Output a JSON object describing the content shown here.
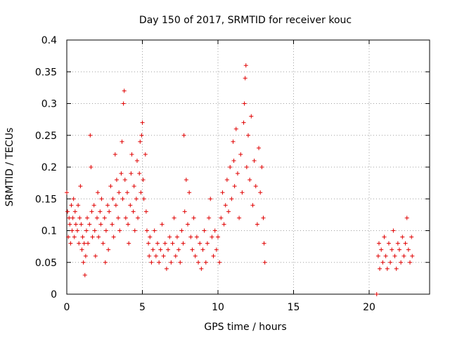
{
  "chart_data": {
    "type": "scatter",
    "title": "Day 150 of 2017, SRMTID for receiver kouc",
    "xlabel": "GPS time / hours",
    "ylabel": "SRMTID / TECUs",
    "xlim": [
      0,
      24
    ],
    "ylim": [
      0,
      0.4
    ],
    "xticks": [
      0,
      5,
      10,
      15,
      20
    ],
    "xtick_labels": [
      "0",
      "5",
      "10",
      "15",
      "20"
    ],
    "yticks": [
      0,
      0.05,
      0.1,
      0.15,
      0.2,
      0.25,
      0.3,
      0.35,
      0.4
    ],
    "ytick_labels": [
      "0",
      "0.05",
      "0.1",
      "0.15",
      "0.2",
      "0.25",
      "0.3",
      "0.35",
      "0.4"
    ],
    "grid": true,
    "marker": "plus",
    "color": "#e00000",
    "series": [
      {
        "name": "SRMTID",
        "points": [
          [
            0.0,
            0.16
          ],
          [
            0.05,
            0.13
          ],
          [
            0.1,
            0.09
          ],
          [
            0.15,
            0.12
          ],
          [
            0.2,
            0.11
          ],
          [
            0.25,
            0.08
          ],
          [
            0.3,
            0.14
          ],
          [
            0.35,
            0.1
          ],
          [
            0.4,
            0.12
          ],
          [
            0.45,
            0.15
          ],
          [
            0.5,
            0.09
          ],
          [
            0.55,
            0.13
          ],
          [
            0.6,
            0.11
          ],
          [
            0.7,
            0.1
          ],
          [
            0.75,
            0.14
          ],
          [
            0.8,
            0.08
          ],
          [
            0.85,
            0.12
          ],
          [
            0.9,
            0.17
          ],
          [
            0.95,
            0.11
          ],
          [
            1.0,
            0.07
          ],
          [
            1.05,
            0.09
          ],
          [
            1.1,
            0.05
          ],
          [
            1.15,
            0.08
          ],
          [
            1.2,
            0.03
          ],
          [
            1.25,
            0.06
          ],
          [
            1.3,
            0.1
          ],
          [
            1.35,
            0.12
          ],
          [
            1.4,
            0.08
          ],
          [
            1.5,
            0.11
          ],
          [
            1.55,
            0.25
          ],
          [
            1.6,
            0.2
          ],
          [
            1.65,
            0.13
          ],
          [
            1.7,
            0.09
          ],
          [
            1.8,
            0.14
          ],
          [
            1.85,
            0.1
          ],
          [
            1.9,
            0.06
          ],
          [
            2.0,
            0.12
          ],
          [
            2.05,
            0.16
          ],
          [
            2.1,
            0.09
          ],
          [
            2.2,
            0.13
          ],
          [
            2.25,
            0.11
          ],
          [
            2.3,
            0.15
          ],
          [
            2.4,
            0.08
          ],
          [
            2.5,
            0.12
          ],
          [
            2.55,
            0.05
          ],
          [
            2.6,
            0.1
          ],
          [
            2.7,
            0.14
          ],
          [
            2.75,
            0.07
          ],
          [
            2.8,
            0.13
          ],
          [
            2.9,
            0.17
          ],
          [
            3.0,
            0.11
          ],
          [
            3.05,
            0.15
          ],
          [
            3.1,
            0.09
          ],
          [
            3.2,
            0.22
          ],
          [
            3.25,
            0.14
          ],
          [
            3.3,
            0.18
          ],
          [
            3.4,
            0.12
          ],
          [
            3.45,
            0.16
          ],
          [
            3.5,
            0.1
          ],
          [
            3.6,
            0.19
          ],
          [
            3.65,
            0.24
          ],
          [
            3.7,
            0.15
          ],
          [
            3.75,
            0.3
          ],
          [
            3.8,
            0.32
          ],
          [
            3.85,
            0.18
          ],
          [
            3.9,
            0.12
          ],
          [
            4.0,
            0.16
          ],
          [
            4.05,
            0.11
          ],
          [
            4.1,
            0.08
          ],
          [
            4.2,
            0.14
          ],
          [
            4.25,
            0.19
          ],
          [
            4.3,
            0.22
          ],
          [
            4.4,
            0.13
          ],
          [
            4.45,
            0.17
          ],
          [
            4.5,
            0.1
          ],
          [
            4.6,
            0.15
          ],
          [
            4.65,
            0.21
          ],
          [
            4.7,
            0.12
          ],
          [
            4.8,
            0.19
          ],
          [
            4.85,
            0.24
          ],
          [
            4.9,
            0.16
          ],
          [
            4.95,
            0.25
          ],
          [
            5.0,
            0.27
          ],
          [
            5.05,
            0.18
          ],
          [
            5.1,
            0.15
          ],
          [
            5.2,
            0.22
          ],
          [
            5.25,
            0.13
          ],
          [
            5.3,
            0.1
          ],
          [
            5.4,
            0.08
          ],
          [
            5.45,
            0.06
          ],
          [
            5.5,
            0.09
          ],
          [
            5.6,
            0.05
          ],
          [
            5.7,
            0.07
          ],
          [
            5.8,
            0.1
          ],
          [
            5.9,
            0.06
          ],
          [
            6.0,
            0.08
          ],
          [
            6.1,
            0.05
          ],
          [
            6.2,
            0.07
          ],
          [
            6.3,
            0.11
          ],
          [
            6.4,
            0.06
          ],
          [
            6.5,
            0.08
          ],
          [
            6.6,
            0.04
          ],
          [
            6.7,
            0.07
          ],
          [
            6.8,
            0.09
          ],
          [
            6.9,
            0.05
          ],
          [
            7.0,
            0.08
          ],
          [
            7.1,
            0.12
          ],
          [
            7.2,
            0.06
          ],
          [
            7.3,
            0.09
          ],
          [
            7.4,
            0.07
          ],
          [
            7.5,
            0.05
          ],
          [
            7.6,
            0.1
          ],
          [
            7.7,
            0.08
          ],
          [
            7.75,
            0.25
          ],
          [
            7.8,
            0.13
          ],
          [
            7.9,
            0.18
          ],
          [
            8.0,
            0.11
          ],
          [
            8.1,
            0.16
          ],
          [
            8.2,
            0.09
          ],
          [
            8.3,
            0.07
          ],
          [
            8.4,
            0.12
          ],
          [
            8.5,
            0.06
          ],
          [
            8.6,
            0.09
          ],
          [
            8.7,
            0.05
          ],
          [
            8.8,
            0.08
          ],
          [
            8.9,
            0.04
          ],
          [
            9.0,
            0.07
          ],
          [
            9.1,
            0.1
          ],
          [
            9.2,
            0.05
          ],
          [
            9.3,
            0.08
          ],
          [
            9.4,
            0.12
          ],
          [
            9.5,
            0.15
          ],
          [
            9.6,
            0.09
          ],
          [
            9.7,
            0.06
          ],
          [
            9.8,
            0.1
          ],
          [
            9.9,
            0.07
          ],
          [
            10.0,
            0.09
          ],
          [
            10.1,
            0.05
          ],
          [
            10.2,
            0.12
          ],
          [
            10.3,
            0.16
          ],
          [
            10.4,
            0.11
          ],
          [
            10.5,
            0.14
          ],
          [
            10.6,
            0.18
          ],
          [
            10.7,
            0.13
          ],
          [
            10.8,
            0.2
          ],
          [
            10.9,
            0.15
          ],
          [
            11.0,
            0.24
          ],
          [
            11.05,
            0.21
          ],
          [
            11.1,
            0.17
          ],
          [
            11.2,
            0.26
          ],
          [
            11.3,
            0.19
          ],
          [
            11.4,
            0.12
          ],
          [
            11.5,
            0.22
          ],
          [
            11.6,
            0.16
          ],
          [
            11.7,
            0.27
          ],
          [
            11.75,
            0.3
          ],
          [
            11.8,
            0.34
          ],
          [
            11.85,
            0.36
          ],
          [
            11.9,
            0.2
          ],
          [
            12.0,
            0.25
          ],
          [
            12.1,
            0.18
          ],
          [
            12.2,
            0.28
          ],
          [
            12.3,
            0.14
          ],
          [
            12.4,
            0.21
          ],
          [
            12.5,
            0.17
          ],
          [
            12.6,
            0.11
          ],
          [
            12.7,
            0.23
          ],
          [
            12.8,
            0.16
          ],
          [
            12.9,
            0.2
          ],
          [
            13.0,
            0.12
          ],
          [
            13.05,
            0.08
          ],
          [
            13.1,
            0.05
          ],
          [
            20.5,
            0.0
          ],
          [
            20.6,
            0.06
          ],
          [
            20.65,
            0.08
          ],
          [
            20.7,
            0.04
          ],
          [
            20.8,
            0.07
          ],
          [
            20.9,
            0.05
          ],
          [
            21.0,
            0.09
          ],
          [
            21.1,
            0.06
          ],
          [
            21.2,
            0.04
          ],
          [
            21.3,
            0.08
          ],
          [
            21.4,
            0.05
          ],
          [
            21.5,
            0.07
          ],
          [
            21.6,
            0.1
          ],
          [
            21.7,
            0.06
          ],
          [
            21.8,
            0.04
          ],
          [
            21.9,
            0.08
          ],
          [
            22.0,
            0.07
          ],
          [
            22.1,
            0.05
          ],
          [
            22.2,
            0.09
          ],
          [
            22.3,
            0.06
          ],
          [
            22.4,
            0.08
          ],
          [
            22.5,
            0.12
          ],
          [
            22.6,
            0.07
          ],
          [
            22.7,
            0.05
          ],
          [
            22.8,
            0.09
          ],
          [
            22.85,
            0.06
          ]
        ]
      }
    ]
  }
}
